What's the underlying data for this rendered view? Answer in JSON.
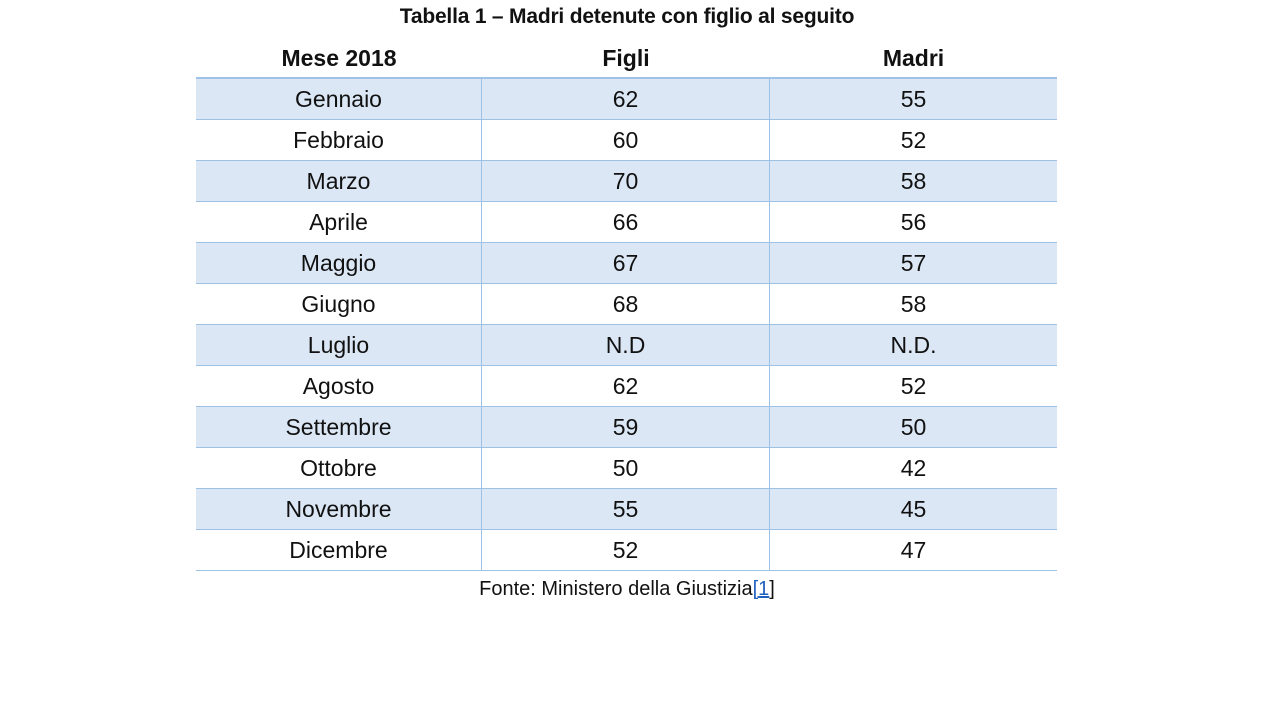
{
  "title": "Tabella 1 – Madri detenute con figlio al seguito",
  "columns": [
    "Mese 2018",
    "Figli",
    "Madri"
  ],
  "rows": [
    [
      "Gennaio",
      "62",
      "55"
    ],
    [
      "Febbraio",
      "60",
      "52"
    ],
    [
      "Marzo",
      "70",
      "58"
    ],
    [
      "Aprile",
      "66",
      "56"
    ],
    [
      "Maggio",
      "67",
      "57"
    ],
    [
      "Giugno",
      "68",
      "58"
    ],
    [
      "Luglio",
      "N.D",
      "N.D."
    ],
    [
      "Agosto",
      "62",
      "52"
    ],
    [
      "Settembre",
      "59",
      "50"
    ],
    [
      "Ottobre",
      "50",
      "42"
    ],
    [
      "Novembre",
      "55",
      "45"
    ],
    [
      "Dicembre",
      "52",
      "47"
    ]
  ],
  "source": {
    "text": "Fonte: Ministero della Giustizia",
    "footnote_open": "[",
    "footnote_link": "1",
    "footnote_close": "]"
  },
  "colors": {
    "row_alt": "#dbe7f5",
    "border": "#9ec2e6",
    "link": "#1f5fbf"
  }
}
